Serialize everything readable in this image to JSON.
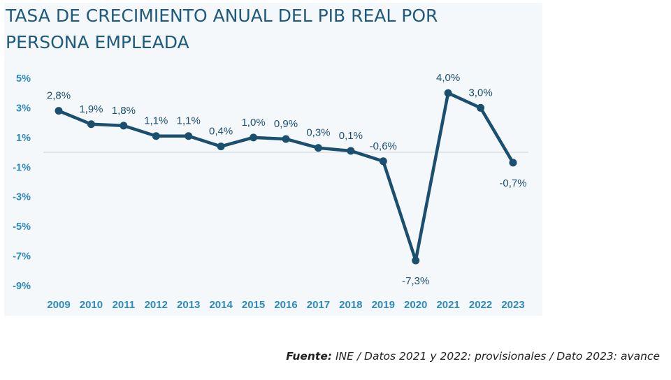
{
  "title": "TASA DE CRECIMIENTO ANUAL DEL PIB REAL POR PERSONA EMPLEADA",
  "source": {
    "label": "Fuente:",
    "text": "INE / Datos 2021 y 2022: provisionales / Dato 2023: avance"
  },
  "colors": {
    "line": "#1b4f6f",
    "axis_label": "#2e8bc0",
    "data_label": "#1b4f6f",
    "zero_line": "#cfd6dc",
    "title": "#1f5a7d"
  },
  "chart_data": {
    "type": "line",
    "title": "TASA DE CRECIMIENTO ANUAL DEL PIB REAL POR PERSONA EMPLEADA",
    "xlabel": "",
    "ylabel": "",
    "categories": [
      "2009",
      "2010",
      "2011",
      "2012",
      "2013",
      "2014",
      "2015",
      "2016",
      "2017",
      "2018",
      "2019",
      "2020",
      "2021",
      "2022",
      "2023"
    ],
    "series": [
      {
        "values": [
          2.8,
          1.9,
          1.8,
          1.1,
          1.1,
          0.4,
          1.0,
          0.9,
          0.3,
          0.1,
          -0.6,
          -7.3,
          4.0,
          3.0,
          -0.7
        ],
        "data_labels": [
          "2,8%",
          "1,9%",
          "1,8%",
          "1,1%",
          "1,1%",
          "0,4%",
          "1,0%",
          "0,9%",
          "0,3%",
          "0,1%",
          "-0,6%",
          "-7,3%",
          "4,0%",
          "3,0%",
          "-0,7%"
        ]
      }
    ],
    "yticks": [
      5,
      3,
      1,
      -1,
      -3,
      -5,
      -7,
      -9
    ],
    "ytick_labels": [
      "5%",
      "3%",
      "1%",
      "-1%",
      "-3%",
      "-5%",
      "-7%",
      "-9%"
    ],
    "ylim": [
      -9,
      5
    ],
    "zero_line": true,
    "grid": false,
    "legend": "none"
  }
}
